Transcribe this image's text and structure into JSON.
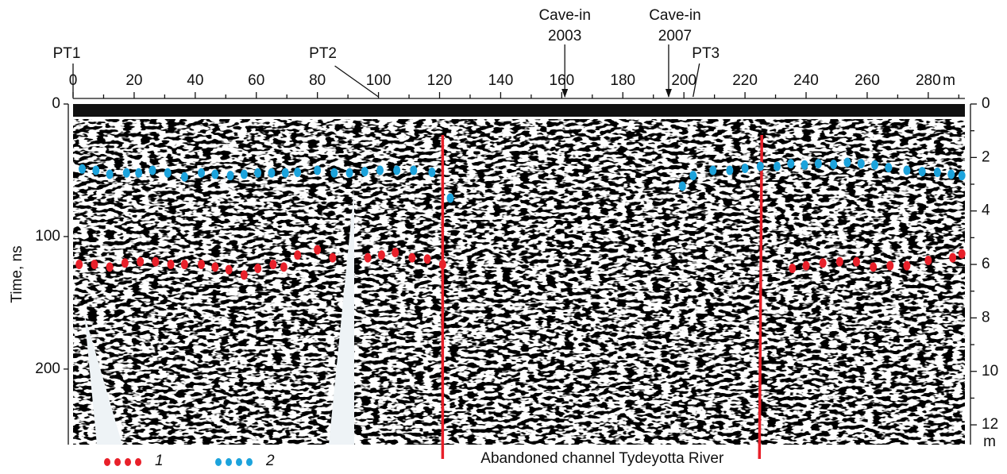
{
  "chart_data": {
    "type": "scatter",
    "ylabel": "Time, ns",
    "x_unit": "m",
    "y2_unit": "m",
    "xlim": [
      0,
      292
    ],
    "xticks": [
      0,
      20,
      40,
      60,
      80,
      100,
      120,
      140,
      160,
      180,
      200,
      220,
      240,
      260,
      280
    ],
    "xticks_minor": [
      10,
      30,
      50,
      70,
      90,
      110,
      130,
      150,
      170,
      190,
      210,
      230,
      250,
      270,
      290
    ],
    "ylim": [
      0,
      257
    ],
    "yticks": [
      0,
      100,
      200
    ],
    "y2lim": [
      0,
      12.74
    ],
    "y2ticks": [
      0,
      2,
      4,
      6,
      8,
      10,
      12
    ],
    "y2ticks_minor": [
      1,
      3,
      5,
      7,
      9,
      11
    ],
    "annotations": [
      {
        "lines": [
          "PT1"
        ],
        "x": 0
      },
      {
        "lines": [
          "PT2"
        ],
        "x": 100
      },
      {
        "lines": [
          "Cave-in",
          "2003"
        ],
        "x": 161
      },
      {
        "lines": [
          "Cave-in",
          "2007"
        ],
        "x": 195
      },
      {
        "lines": [
          "PT3"
        ],
        "x": 203
      }
    ],
    "channel_bounds": [
      121,
      225.5
    ],
    "channel_label": "Abandoned channel Tydeyotta River",
    "series": [
      {
        "name": "1",
        "color": "#e8202a",
        "x": [
          2,
          7,
          12,
          17,
          22,
          27,
          32,
          36.5,
          42,
          46.5,
          51,
          56,
          60.5,
          65.5,
          69,
          73.5,
          80,
          85,
          96.5,
          101,
          105.5,
          111,
          116,
          121,
          235.5,
          240,
          245.5,
          251,
          256.5,
          262,
          267.5,
          273,
          280,
          288,
          291
        ],
        "values": [
          121,
          121,
          123,
          120,
          119,
          119,
          121,
          121,
          121,
          123,
          125,
          129,
          124,
          121,
          123,
          114,
          110,
          116,
          116,
          114,
          112,
          116,
          117,
          121,
          124,
          122,
          120,
          119,
          119,
          123,
          122,
          122,
          118,
          116,
          113
        ]
      },
      {
        "name": "2",
        "color": "#1ca3dc",
        "x": [
          3,
          7.5,
          12,
          17.5,
          21.5,
          26,
          31,
          36.5,
          42,
          46.5,
          51.5,
          56,
          60.5,
          65,
          69.5,
          73.5,
          80,
          85.5,
          90.5,
          95.5,
          100.5,
          106,
          111.5,
          117.5,
          123.5,
          199.5,
          203,
          209.5,
          215,
          220,
          225,
          230.5,
          235,
          239.5,
          244,
          249,
          253.5,
          258,
          262.5,
          267,
          273,
          278,
          283,
          287.5,
          291
        ],
        "values": [
          49,
          50,
          53,
          52,
          52,
          50,
          52,
          55,
          52,
          53,
          54,
          53,
          52,
          52,
          52,
          51.5,
          50,
          52,
          52,
          51,
          50,
          50,
          50,
          51.5,
          71,
          62,
          54,
          50,
          50,
          48.5,
          47,
          47,
          45,
          46,
          45,
          45.5,
          44,
          45,
          46,
          48,
          50,
          51,
          51.5,
          53,
          54
        ]
      }
    ]
  }
}
